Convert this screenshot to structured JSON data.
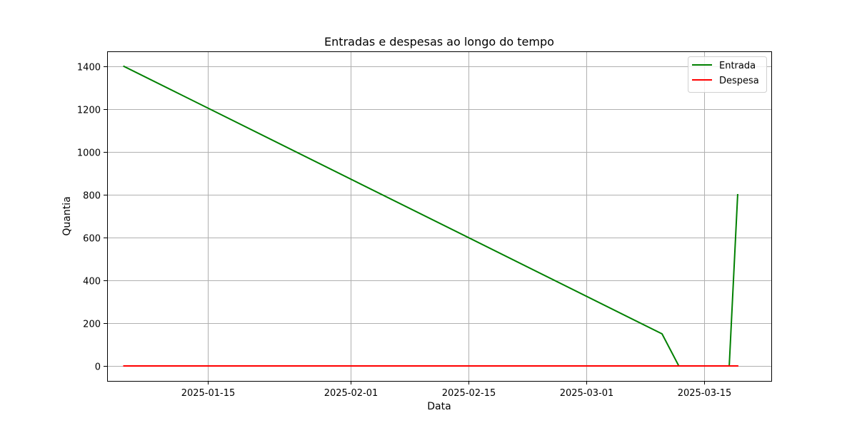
{
  "chart_data": {
    "type": "line",
    "title": "Entradas e despesas ao longo do tempo",
    "xlabel": "Data",
    "ylabel": "Quantia",
    "x_is_date": true,
    "xlim": [
      "2025-01-03",
      "2025-03-23"
    ],
    "ylim": [
      -70,
      1470
    ],
    "x_ticks": [
      "2025-01-15",
      "2025-02-01",
      "2025-02-15",
      "2025-03-01",
      "2025-03-15"
    ],
    "x_tick_labels": [
      "2025-01-15",
      "2025-02-01",
      "2025-02-15",
      "2025-03-01",
      "2025-03-15"
    ],
    "y_ticks": [
      0,
      200,
      400,
      600,
      800,
      1000,
      1200,
      1400
    ],
    "y_tick_labels": [
      "0",
      "200",
      "400",
      "600",
      "800",
      "1000",
      "1200",
      "1400"
    ],
    "grid": true,
    "legend_position": "top-right",
    "series": [
      {
        "name": "Entrada",
        "color": "#008000",
        "points": [
          {
            "x": "2025-01-05",
            "y": 1400
          },
          {
            "x": "2025-03-10",
            "y": 150
          },
          {
            "x": "2025-03-12",
            "y": 0
          },
          {
            "x": "2025-03-18",
            "y": 0
          },
          {
            "x": "2025-03-19",
            "y": 800
          }
        ]
      },
      {
        "name": "Despesa",
        "color": "#ff0000",
        "points": [
          {
            "x": "2025-01-05",
            "y": 0
          },
          {
            "x": "2025-03-10",
            "y": 0
          },
          {
            "x": "2025-03-12",
            "y": 0
          },
          {
            "x": "2025-03-18",
            "y": 0
          },
          {
            "x": "2025-03-19",
            "y": 0
          }
        ]
      }
    ]
  }
}
